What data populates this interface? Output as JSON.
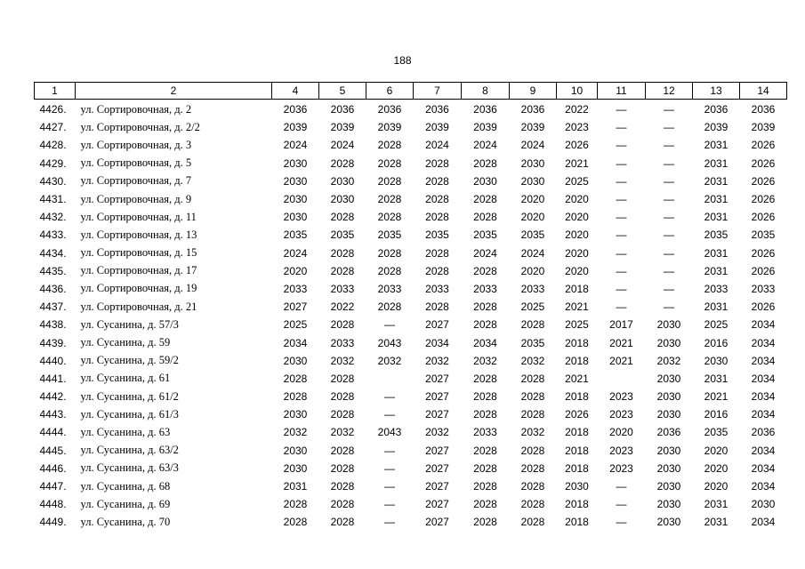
{
  "page_number": "188",
  "table": {
    "header": [
      "1",
      "2",
      "4",
      "5",
      "6",
      "7",
      "8",
      "9",
      "10",
      "11",
      "12",
      "13",
      "14"
    ],
    "rows": [
      [
        "4426.",
        "ул. Сортировочная, д. 2",
        "2036",
        "2036",
        "2036",
        "2036",
        "2036",
        "2036",
        "2022",
        "—",
        "—",
        "2036",
        "2036"
      ],
      [
        "4427.",
        "ул. Сортировочная, д. 2/2",
        "2039",
        "2039",
        "2039",
        "2039",
        "2039",
        "2039",
        "2023",
        "—",
        "—",
        "2039",
        "2039"
      ],
      [
        "4428.",
        "ул. Сортировочная, д. 3",
        "2024",
        "2024",
        "2028",
        "2024",
        "2024",
        "2024",
        "2026",
        "—",
        "—",
        "2031",
        "2026"
      ],
      [
        "4429.",
        "ул. Сортировочная, д. 5",
        "2030",
        "2028",
        "2028",
        "2028",
        "2028",
        "2030",
        "2021",
        "—",
        "—",
        "2031",
        "2026"
      ],
      [
        "4430.",
        "ул. Сортировочная, д. 7",
        "2030",
        "2030",
        "2028",
        "2028",
        "2030",
        "2030",
        "2025",
        "—",
        "—",
        "2031",
        "2026"
      ],
      [
        "4431.",
        "ул. Сортировочная, д. 9",
        "2030",
        "2030",
        "2028",
        "2028",
        "2028",
        "2020",
        "2020",
        "—",
        "—",
        "2031",
        "2026"
      ],
      [
        "4432.",
        "ул. Сортировочная, д. 11",
        "2030",
        "2028",
        "2028",
        "2028",
        "2028",
        "2020",
        "2020",
        "—",
        "—",
        "2031",
        "2026"
      ],
      [
        "4433.",
        "ул. Сортировочная, д. 13",
        "2035",
        "2035",
        "2035",
        "2035",
        "2035",
        "2035",
        "2020",
        "—",
        "—",
        "2035",
        "2035"
      ],
      [
        "4434.",
        "ул. Сортировочная, д. 15",
        "2024",
        "2028",
        "2028",
        "2028",
        "2024",
        "2024",
        "2020",
        "—",
        "—",
        "2031",
        "2026"
      ],
      [
        "4435.",
        "ул. Сортировочная, д. 17",
        "2020",
        "2028",
        "2028",
        "2028",
        "2028",
        "2020",
        "2020",
        "—",
        "—",
        "2031",
        "2026"
      ],
      [
        "4436.",
        "ул. Сортировочная, д. 19",
        "2033",
        "2033",
        "2033",
        "2033",
        "2033",
        "2033",
        "2018",
        "—",
        "—",
        "2033",
        "2033"
      ],
      [
        "4437.",
        "ул. Сортировочная, д. 21",
        "2027",
        "2022",
        "2028",
        "2028",
        "2028",
        "2025",
        "2021",
        "—",
        "—",
        "2031",
        "2026"
      ],
      [
        "4438.",
        "ул. Сусанина, д. 57/3",
        "2025",
        "2028",
        "—",
        "2027",
        "2028",
        "2028",
        "2025",
        "2017",
        "2030",
        "2025",
        "2034"
      ],
      [
        "4439.",
        "ул. Сусанина, д. 59",
        "2034",
        "2033",
        "2043",
        "2034",
        "2034",
        "2035",
        "2018",
        "2021",
        "2030",
        "2016",
        "2034"
      ],
      [
        "4440.",
        "ул. Сусанина, д. 59/2",
        "2030",
        "2032",
        "2032",
        "2032",
        "2032",
        "2032",
        "2018",
        "2021",
        "2032",
        "2030",
        "2034"
      ],
      [
        "4441.",
        "ул. Сусанина, д. 61",
        "2028",
        "2028",
        null,
        "2027",
        "2028",
        "2028",
        "2021",
        null,
        "2030",
        "2031",
        "2034"
      ],
      [
        "4442.",
        "ул. Сусанина, д. 61/2",
        "2028",
        "2028",
        "—",
        "2027",
        "2028",
        "2028",
        "2018",
        "2023",
        "2030",
        "2021",
        "2034"
      ],
      [
        "4443.",
        "ул. Сусанина, д. 61/3",
        "2030",
        "2028",
        "—",
        "2027",
        "2028",
        "2028",
        "2026",
        "2023",
        "2030",
        "2016",
        "2034"
      ],
      [
        "4444.",
        "ул. Сусанина, д. 63",
        "2032",
        "2032",
        "2043",
        "2032",
        "2033",
        "2032",
        "2018",
        "2020",
        "2036",
        "2035",
        "2036"
      ],
      [
        "4445.",
        "ул. Сусанина, д. 63/2",
        "2030",
        "2028",
        "—",
        "2027",
        "2028",
        "2028",
        "2018",
        "2023",
        "2030",
        "2020",
        "2034"
      ],
      [
        "4446.",
        "ул. Сусанина, д. 63/3",
        "2030",
        "2028",
        "—",
        "2027",
        "2028",
        "2028",
        "2018",
        "2023",
        "2030",
        "2020",
        "2034"
      ],
      [
        "4447.",
        "ул. Сусанина, д. 68",
        "2031",
        "2028",
        "—",
        "2027",
        "2028",
        "2028",
        "2030",
        "—",
        "2030",
        "2020",
        "2034"
      ],
      [
        "4448.",
        "ул. Сусанина, д. 69",
        "2028",
        "2028",
        "—",
        "2027",
        "2028",
        "2028",
        "2018",
        "—",
        "2030",
        "2031",
        "2030"
      ],
      [
        "4449.",
        "ул. Сусанина, д. 70",
        "2028",
        "2028",
        "—",
        "2027",
        "2028",
        "2028",
        "2018",
        "—",
        "2030",
        "2031",
        "2034"
      ]
    ]
  }
}
